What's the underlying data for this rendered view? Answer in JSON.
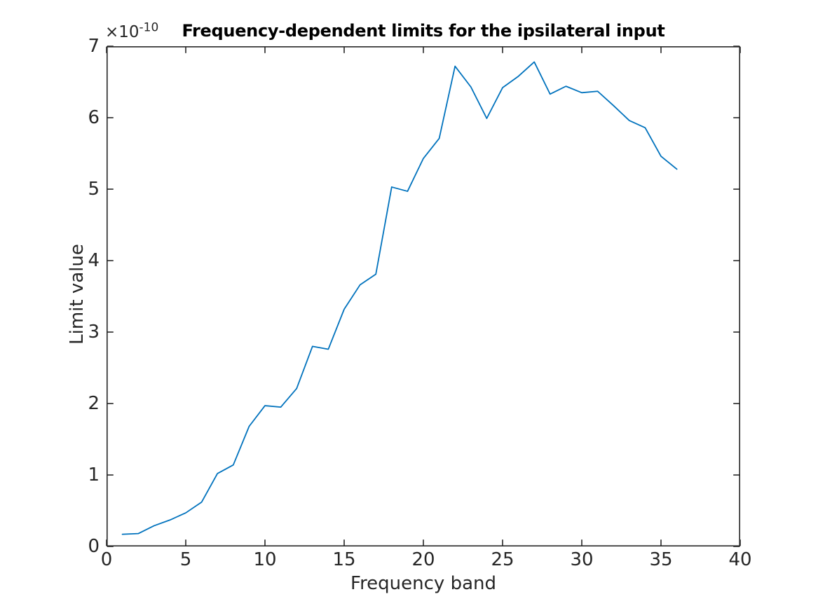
{
  "figure": {
    "title": "Frequency-dependent limits for the ipsilateral input",
    "xlabel": "Frequency band",
    "ylabel": "Limit value",
    "y_exponent_prefix": "×10",
    "y_exponent_power": "-10",
    "colors": {
      "line": "#0072BD",
      "axis": "#262626",
      "tick_text": "#262626",
      "title_text": "#000000",
      "background": "#ffffff"
    }
  },
  "chart_data": {
    "type": "line",
    "title": "Frequency-dependent limits for the ipsilateral input",
    "xlabel": "Frequency band",
    "ylabel": "Limit value",
    "y_unit_scale": "1e-10",
    "y_axis_exponent_label": "×10^-10",
    "x": [
      1,
      2,
      3,
      4,
      5,
      6,
      7,
      8,
      9,
      10,
      11,
      12,
      13,
      14,
      15,
      16,
      17,
      18,
      19,
      20,
      21,
      22,
      23,
      24,
      25,
      26,
      27,
      28,
      29,
      30,
      31,
      32,
      33,
      34,
      35,
      36
    ],
    "y": [
      0.17,
      0.18,
      0.29,
      0.37,
      0.47,
      0.62,
      1.02,
      1.14,
      1.68,
      1.97,
      1.95,
      2.21,
      2.8,
      2.76,
      3.32,
      3.66,
      3.81,
      5.03,
      4.97,
      5.43,
      5.71,
      6.72,
      6.43,
      5.99,
      6.42,
      6.58,
      6.78,
      6.33,
      6.44,
      6.35,
      6.37,
      6.17,
      5.96,
      5.86,
      5.46,
      5.28
    ],
    "xlim": [
      0,
      40
    ],
    "ylim": [
      0,
      7
    ],
    "xticks": [
      0,
      5,
      10,
      15,
      20,
      25,
      30,
      35,
      40
    ],
    "yticks": [
      0,
      1,
      2,
      3,
      4,
      5,
      6,
      7
    ],
    "grid": false,
    "legend": "none",
    "box": true,
    "tick_direction": "in"
  }
}
